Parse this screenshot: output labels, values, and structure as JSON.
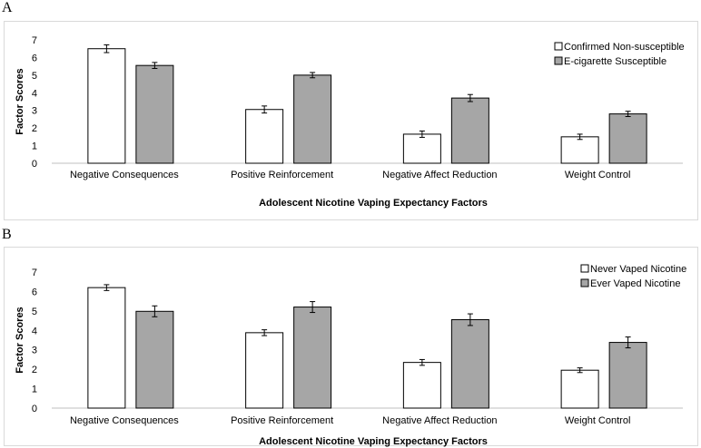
{
  "chart_data": [
    {
      "panel": "A",
      "type": "bar",
      "categories": [
        "Negative Consequences",
        "Positive Reinforcement",
        "Negative Affect Reduction",
        "Weight Control"
      ],
      "series": [
        {
          "name": "Confirmed Non-susceptible",
          "values": [
            6.5,
            3.05,
            1.65,
            1.5
          ],
          "errors": [
            0.22,
            0.2,
            0.18,
            0.15
          ],
          "color": "#ffffff"
        },
        {
          "name": "E-cigarette Susceptible",
          "values": [
            5.55,
            5.0,
            3.7,
            2.8
          ],
          "errors": [
            0.17,
            0.15,
            0.2,
            0.15
          ],
          "color": "#a6a6a6"
        }
      ],
      "xlabel": "Adolescent Nicotine Vaping Expectancy Factors",
      "ylabel": "Factor Scores",
      "ylim": [
        0,
        7
      ],
      "yticks": [
        "0",
        "1",
        "2",
        "3",
        "4",
        "5",
        "6",
        "7"
      ],
      "legend": "top-right"
    },
    {
      "panel": "B",
      "type": "bar",
      "categories": [
        "Negative Consequences",
        "Positive Reinforcement",
        "Negative Affect Reduction",
        "Weight Control"
      ],
      "series": [
        {
          "name": "Never Vaped Nicotine",
          "values": [
            6.2,
            3.88,
            2.35,
            1.95
          ],
          "errors": [
            0.15,
            0.15,
            0.15,
            0.12
          ],
          "color": "#ffffff"
        },
        {
          "name": "Ever Vaped Nicotine",
          "values": [
            4.98,
            5.2,
            4.55,
            3.38
          ],
          "errors": [
            0.28,
            0.28,
            0.3,
            0.28
          ],
          "color": "#a6a6a6"
        }
      ],
      "xlabel": "Adolescent Nicotine Vaping Expectancy Factors",
      "ylabel": "Factor Scores",
      "ylim": [
        0,
        7
      ],
      "yticks": [
        "0",
        "1",
        "2",
        "3",
        "4",
        "5",
        "6",
        "7"
      ],
      "legend": "top-right"
    }
  ],
  "panels": {
    "a_label": "A",
    "b_label": "B"
  }
}
